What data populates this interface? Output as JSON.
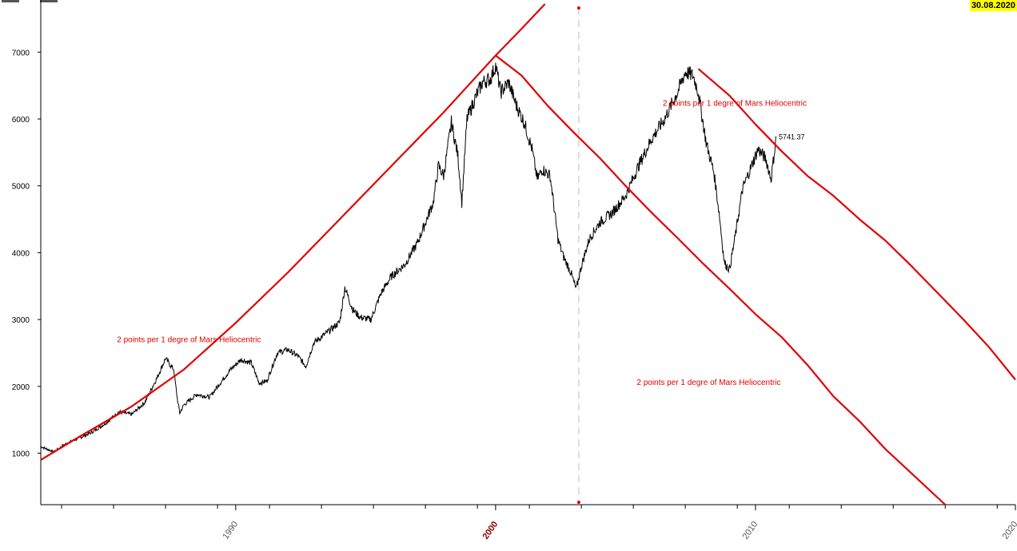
{
  "header": {
    "date_badge": "30.08.2020",
    "badge_color": "#ffff00"
  },
  "colors": {
    "price": "#000000",
    "angle": "#e00000",
    "label": "#e00000",
    "axis": "#000000",
    "cursor": "#c8c8c8",
    "cursor_dot": "#e00000",
    "highlight_tick": "#8b0000"
  },
  "chart_data": {
    "type": "line",
    "xlim": [
      1982.5,
      2020.0
    ],
    "ylim": [
      230,
      7780
    ],
    "grid": false,
    "y_ticks": [
      1000,
      2000,
      3000,
      4000,
      5000,
      6000,
      7000
    ],
    "x_ticks": [
      {
        "value": 1990,
        "label": "1990",
        "highlight": false
      },
      {
        "value": 2000,
        "label": "2000",
        "highlight": true
      },
      {
        "value": 2010,
        "label": "2010",
        "highlight": false
      },
      {
        "value": 2020,
        "label": "2020",
        "highlight": false
      }
    ],
    "x_minor_ticks": [
      1983.3,
      1985.3,
      1987.3,
      1989.3,
      1991.3,
      1993.3,
      1995.3,
      1997.3,
      1999.3,
      2001.3,
      2003.3,
      2005.3,
      2007.3,
      2009.3,
      2011.3,
      2013.3,
      2015.3,
      2017.3,
      2019.3
    ],
    "cursor_x": 2003.2,
    "last_value": {
      "x": 2010.8,
      "y": 5741.37,
      "label": "5741.37"
    },
    "series": [
      {
        "role": "price",
        "x": [
          1982.5,
          1983.0,
          1983.5,
          1984.0,
          1984.5,
          1985.0,
          1985.5,
          1986.0,
          1986.5,
          1987.0,
          1987.3,
          1987.5,
          1987.62,
          1987.75,
          1987.85,
          1988.0,
          1988.5,
          1989.0,
          1989.5,
          1989.8,
          1990.2,
          1990.6,
          1990.9,
          1991.2,
          1991.6,
          1992.0,
          1992.4,
          1992.7,
          1993.0,
          1993.5,
          1994.0,
          1994.2,
          1994.5,
          1994.8,
          1995.2,
          1995.6,
          1996.0,
          1996.5,
          1997.0,
          1997.3,
          1997.6,
          1997.8,
          1998.0,
          1998.3,
          1998.55,
          1998.7,
          1998.9,
          1999.2,
          1999.5,
          1999.8,
          2000.0,
          2000.2,
          2000.5,
          2000.8,
          2001.1,
          2001.4,
          2001.6,
          2001.8,
          2002.1,
          2002.4,
          2002.6,
          2002.9,
          2003.1,
          2003.3,
          2003.6,
          2004.0,
          2004.5,
          2005.0,
          2005.5,
          2006.0,
          2006.5,
          2007.0,
          2007.3,
          2007.6,
          2007.8,
          2008.1,
          2008.4,
          2008.6,
          2008.8,
          2009.0,
          2009.2,
          2009.5,
          2009.8,
          2010.1,
          2010.4,
          2010.6,
          2010.8
        ],
        "y": [
          1100,
          1020,
          1150,
          1230,
          1320,
          1450,
          1620,
          1580,
          1760,
          2150,
          2420,
          2310,
          2250,
          1820,
          1600,
          1720,
          1880,
          1840,
          2100,
          2250,
          2400,
          2350,
          2050,
          2080,
          2500,
          2550,
          2450,
          2300,
          2650,
          2800,
          2960,
          3480,
          3150,
          3030,
          3000,
          3400,
          3650,
          3820,
          4150,
          4450,
          4750,
          5300,
          5150,
          5950,
          5450,
          4750,
          6000,
          6300,
          6550,
          6600,
          6800,
          6400,
          6550,
          6200,
          5950,
          5550,
          5100,
          5250,
          5150,
          4200,
          3950,
          3700,
          3450,
          3800,
          4200,
          4450,
          4600,
          4850,
          5300,
          5700,
          6000,
          6400,
          6700,
          6650,
          6400,
          5650,
          5200,
          4600,
          3850,
          3750,
          4200,
          4950,
          5250,
          5550,
          5400,
          5100,
          5741
        ]
      },
      {
        "role": "angle",
        "x": [
          1982.5,
          1984.0,
          1986.0,
          1988.0,
          1990.0,
          1992.0,
          1994.0,
          1996.0,
          1998.0,
          2000.0,
          2001.0,
          2001.9
        ],
        "y": [
          900,
          1250,
          1700,
          2250,
          2950,
          3700,
          4500,
          5300,
          6100,
          6950,
          7350,
          7720
        ]
      },
      {
        "role": "angle",
        "x": [
          2000.0,
          2001.0,
          2002.0,
          2003.0,
          2004.0,
          2005.0,
          2006.0,
          2007.0,
          2008.0,
          2009.0,
          2010.0,
          2011.0,
          2012.0,
          2013.0,
          2014.0,
          2015.0,
          2016.0,
          2017.3
        ],
        "y": [
          6950,
          6650,
          6200,
          5800,
          5420,
          5000,
          4600,
          4220,
          3830,
          3460,
          3080,
          2740,
          2320,
          1850,
          1480,
          1060,
          700,
          230
        ]
      },
      {
        "role": "angle",
        "x": [
          2007.8,
          2009.0,
          2010.0,
          2011.0,
          2012.0,
          2013.0,
          2014.0,
          2015.0,
          2016.0,
          2017.0,
          2018.0,
          2019.0,
          2020.0
        ],
        "y": [
          6750,
          6350,
          5920,
          5520,
          5150,
          4850,
          4500,
          4180,
          3800,
          3400,
          3000,
          2580,
          2100
        ]
      }
    ],
    "annotations": [
      {
        "text": "2 points per 1 degre of Mars Heliocentric",
        "x": 1988.2,
        "y": 2660
      },
      {
        "text": "2 points per 1 degre of Mars Heliocentric",
        "x": 2009.2,
        "y": 6200
      },
      {
        "text": "2 points per 1 degre of Mars Heliocentric",
        "x": 2008.2,
        "y": 2020
      }
    ]
  }
}
